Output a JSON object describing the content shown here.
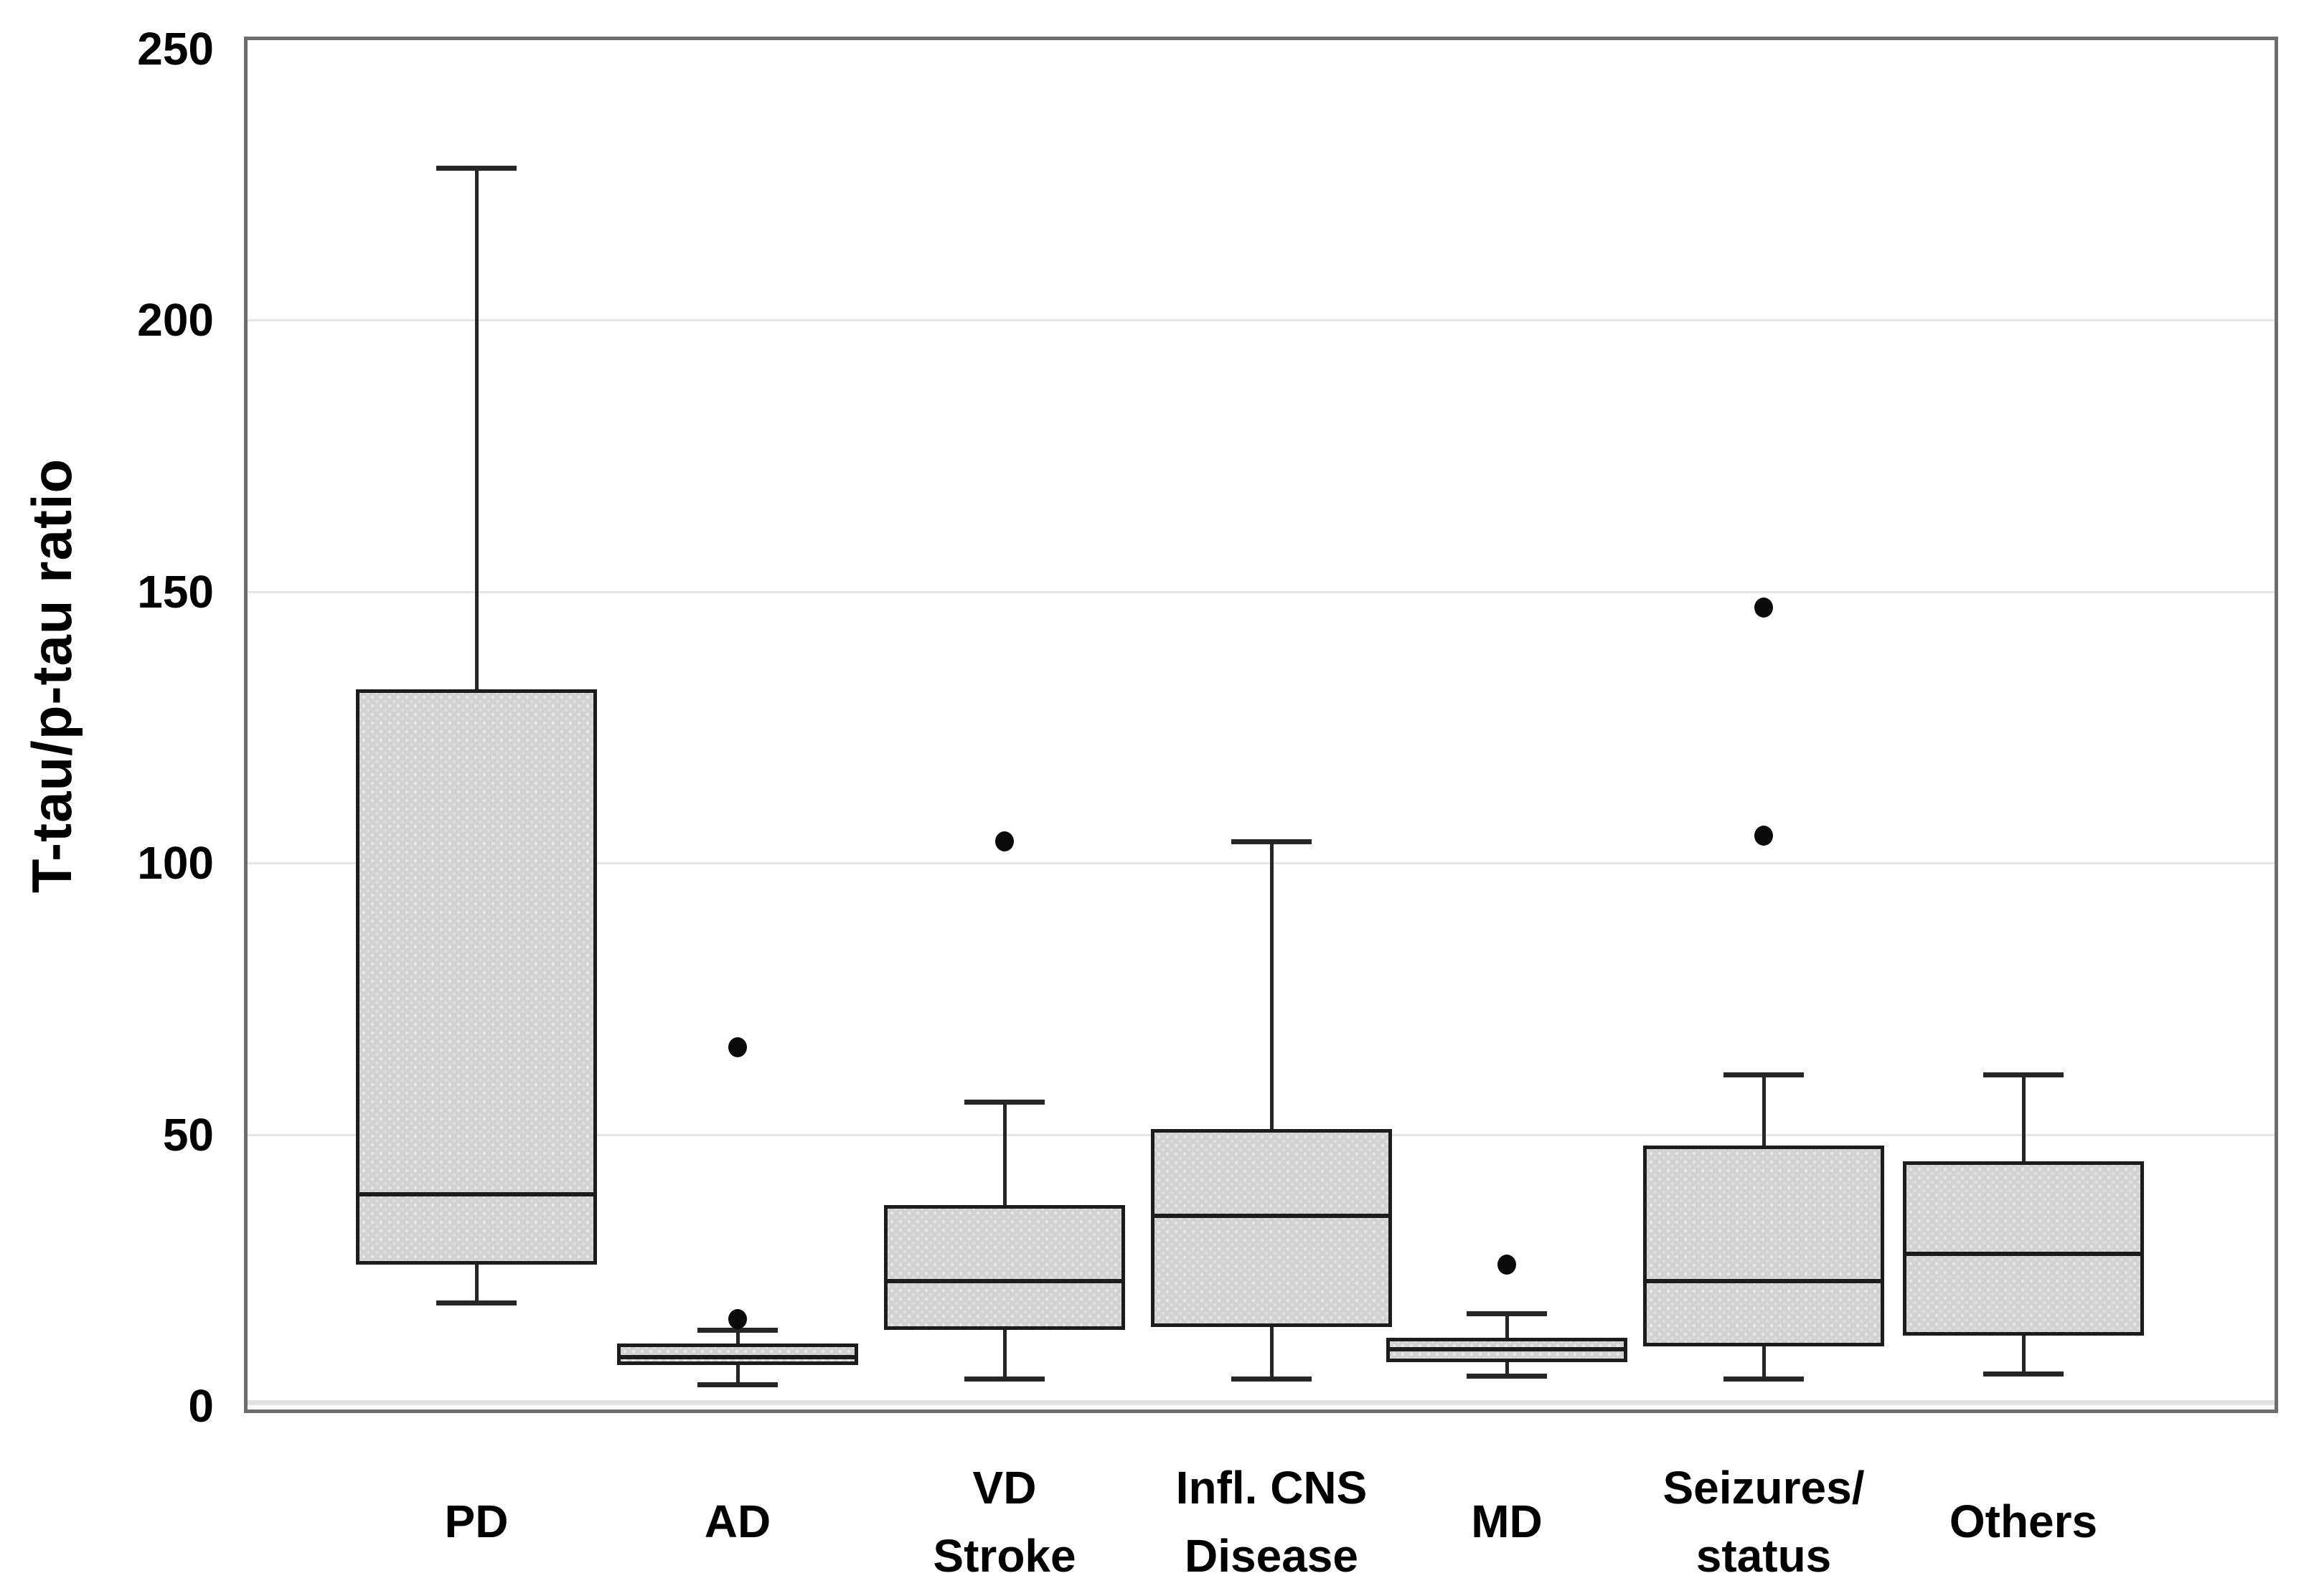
{
  "chart_data": {
    "type": "box",
    "title": "",
    "xlabel": "",
    "ylabel": "T-tau/p-tau ratio",
    "ylim": [
      0,
      250
    ],
    "y_ticks": [
      0,
      50,
      100,
      150,
      200,
      250
    ],
    "grid": "horizontal gridlines at 50, 100, 150, 200",
    "legend": "none",
    "categories": [
      {
        "label": "PD",
        "label_lines": [
          "PD"
        ],
        "whisker_low": 19,
        "q1": 26,
        "median": 39,
        "q3": 132,
        "whisker_high": 228,
        "outliers": []
      },
      {
        "label": "AD",
        "label_lines": [
          "AD"
        ],
        "whisker_low": 4,
        "q1": 7.5,
        "median": 9,
        "q3": 11.5,
        "whisker_high": 14,
        "outliers": [
          16,
          66
        ]
      },
      {
        "label": "VD Stroke",
        "label_lines": [
          "VD",
          "Stroke"
        ],
        "whisker_low": 5,
        "q1": 14,
        "median": 23,
        "q3": 37,
        "whisker_high": 56,
        "outliers": [
          104
        ]
      },
      {
        "label": "Infl. CNS Disease",
        "label_lines": [
          "Infl. CNS",
          "Disease"
        ],
        "whisker_low": 5,
        "q1": 14.5,
        "median": 35,
        "q3": 51,
        "whisker_high": 104,
        "outliers": []
      },
      {
        "label": "MD",
        "label_lines": [
          "MD"
        ],
        "whisker_low": 5.5,
        "q1": 8,
        "median": 10.5,
        "q3": 12.5,
        "whisker_high": 17,
        "outliers": [
          26
        ]
      },
      {
        "label": "Seizures/status",
        "label_lines": [
          "Seizures/",
          "status"
        ],
        "whisker_low": 5,
        "q1": 11,
        "median": 23,
        "q3": 48,
        "whisker_high": 61,
        "outliers": [
          105,
          147
        ]
      },
      {
        "label": "Others",
        "label_lines": [
          "Others"
        ],
        "whisker_low": 6,
        "q1": 13,
        "median": 28,
        "q3": 45,
        "whisker_high": 61,
        "outliers": []
      }
    ],
    "colors": {
      "box_fill": "#d2d2d2",
      "box_border": "#1c1c1c",
      "median": "#1c1c1c",
      "whisker": "#262626",
      "outlier": "#0a0a0a",
      "gridline": "#e6e6e6",
      "frame": "#6e6e6e",
      "text": "#000000",
      "background": "#ffffff"
    }
  }
}
